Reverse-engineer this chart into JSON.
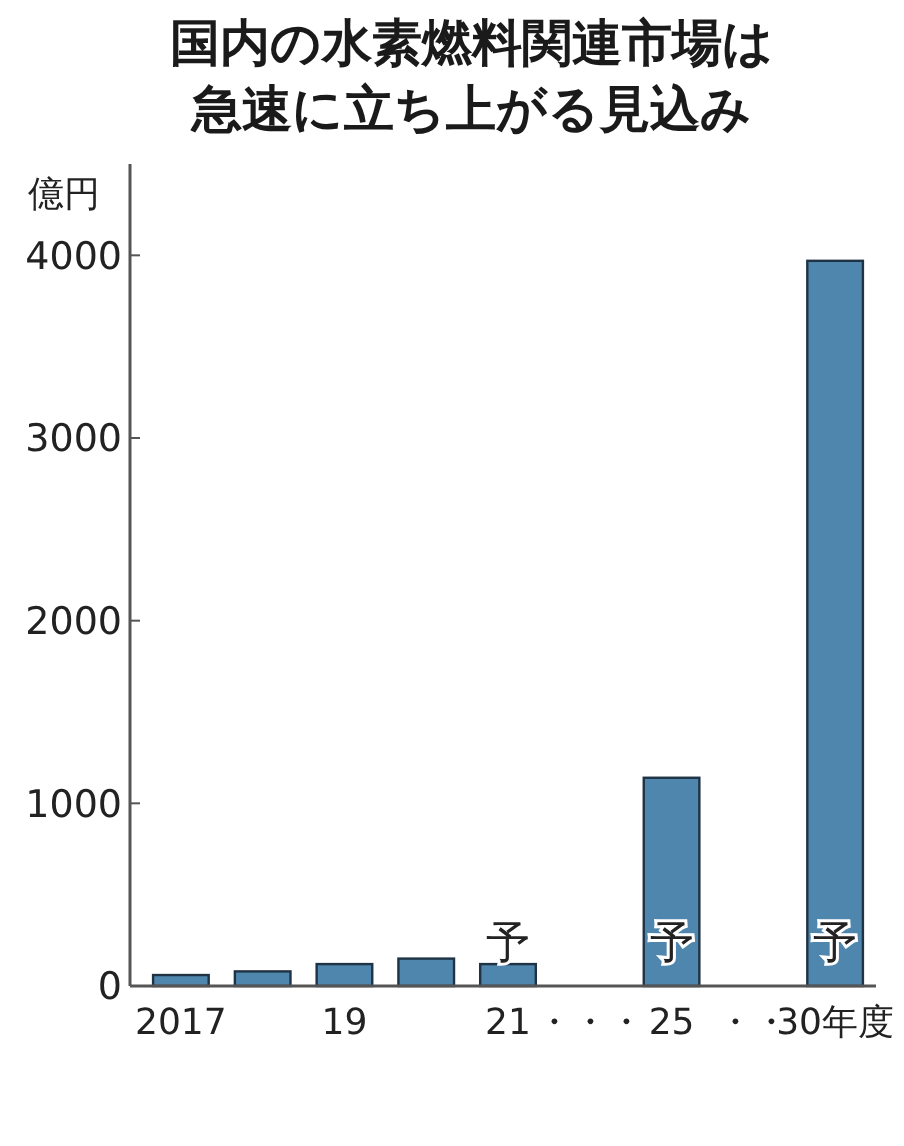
{
  "chart_data": {
    "type": "bar",
    "title": "国内の水素燃料関連市場は急速に立ち上がる見込み",
    "ylabel": "億円",
    "categories": [
      "2017",
      null,
      "19",
      null,
      "21",
      "・・・",
      "25",
      "・・",
      "30年度"
    ],
    "values": [
      60,
      80,
      120,
      150,
      120,
      null,
      1140,
      null,
      3970
    ],
    "color": "#4f86ad",
    "ylim": [
      0,
      4500
    ],
    "yticks": [
      0,
      1000,
      2000,
      3000,
      4000
    ],
    "grid": false,
    "annotations": [
      "予",
      "予",
      "予"
    ]
  }
}
